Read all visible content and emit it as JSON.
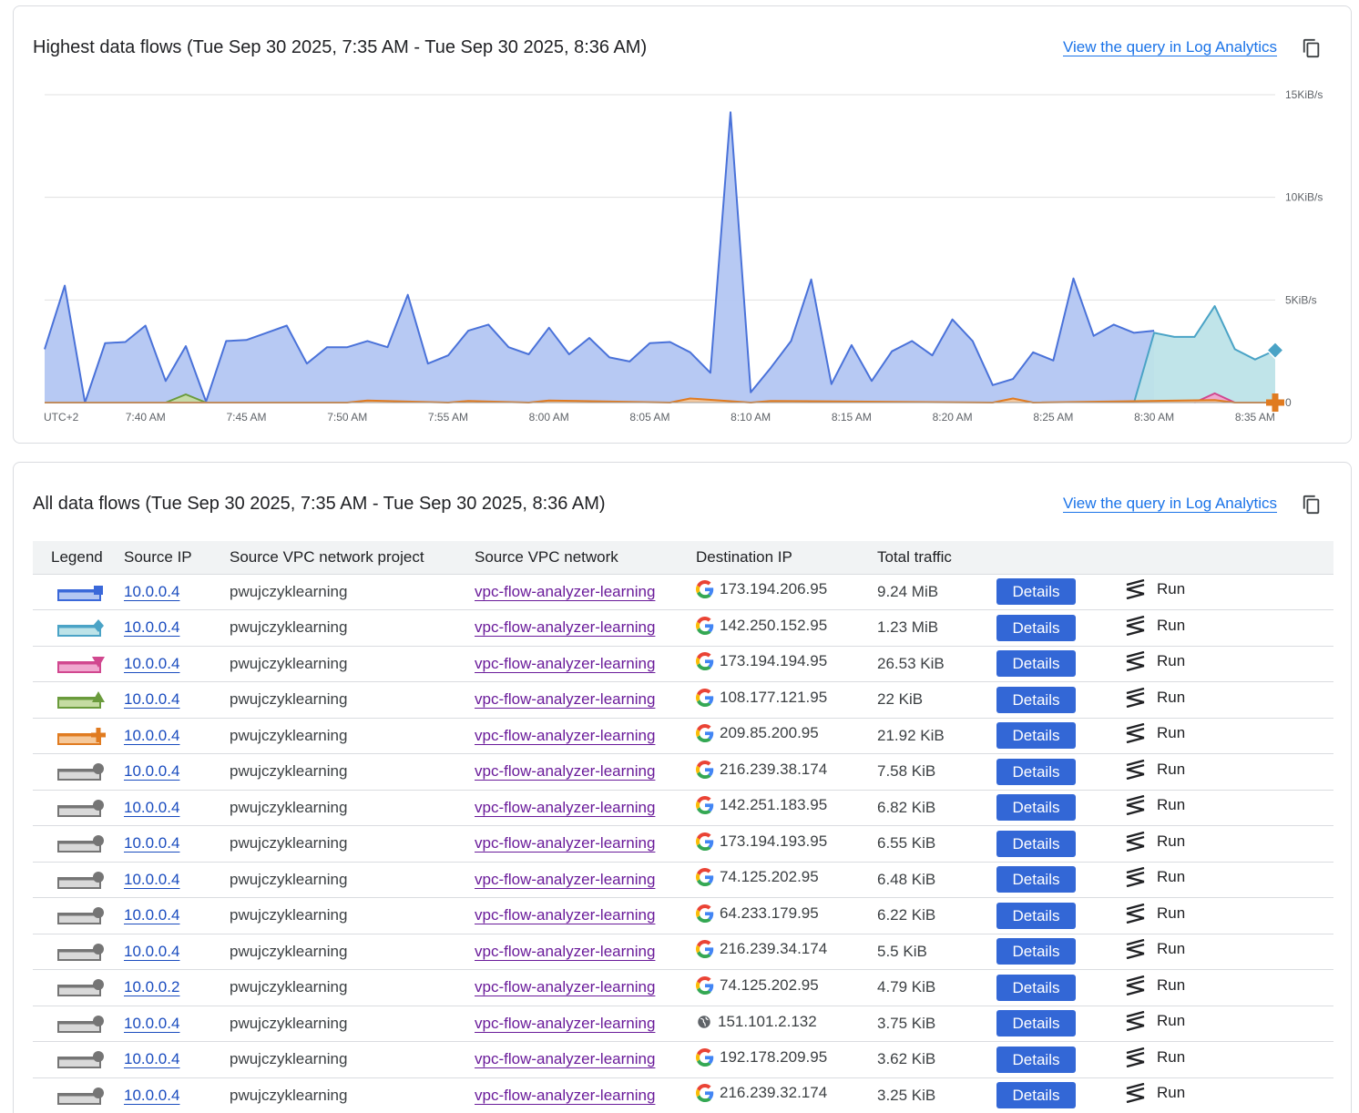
{
  "chart_card": {
    "title": "Highest data flows (Tue Sep 30 2025, 7:35 AM - Tue Sep 30 2025, 8:36 AM)",
    "link_label": "View the query in Log Analytics",
    "copy_icon": "copy-icon"
  },
  "chart_data": {
    "type": "area",
    "title": "Highest data flows (Tue Sep 30 2025, 7:35 AM - Tue Sep 30 2025, 8:36 AM)",
    "xlabel": "",
    "ylabel": "",
    "timezone_label": "UTC+2",
    "x_unit": "minutes since 7:35 AM",
    "x_range": [
      0,
      61
    ],
    "ylim": [
      0,
      15
    ],
    "y_unit": "KiB/s",
    "y_ticks": [
      {
        "value": 0,
        "label": "0"
      },
      {
        "value": 5,
        "label": "5KiB/s"
      },
      {
        "value": 10,
        "label": "10KiB/s"
      },
      {
        "value": 15,
        "label": "15KiB/s"
      }
    ],
    "x_ticks": [
      {
        "value": 5,
        "label": "7:40 AM"
      },
      {
        "value": 10,
        "label": "7:45 AM"
      },
      {
        "value": 15,
        "label": "7:50 AM"
      },
      {
        "value": 20,
        "label": "7:55 AM"
      },
      {
        "value": 25,
        "label": "8:00 AM"
      },
      {
        "value": 30,
        "label": "8:05 AM"
      },
      {
        "value": 35,
        "label": "8:10 AM"
      },
      {
        "value": 40,
        "label": "8:15 AM"
      },
      {
        "value": 45,
        "label": "8:20 AM"
      },
      {
        "value": 50,
        "label": "8:25 AM"
      },
      {
        "value": 55,
        "label": "8:30 AM"
      },
      {
        "value": 60,
        "label": "8:35 AM"
      }
    ],
    "grid": true,
    "series": [
      {
        "name": "173.194.206.95",
        "color": "#4a72d9",
        "fill": "#b3c6f2",
        "x": [
          0,
          1,
          2,
          3,
          4,
          5,
          6,
          7,
          8,
          9,
          10,
          11,
          12,
          13,
          14,
          15,
          16,
          17,
          18,
          19,
          20,
          21,
          22,
          23,
          24,
          25,
          26,
          27,
          28,
          29,
          30,
          31,
          32,
          33,
          34,
          35,
          36,
          37,
          38,
          39,
          40,
          41,
          42,
          43,
          44,
          45,
          46,
          47,
          48,
          49,
          50,
          51,
          52,
          53,
          54,
          55
        ],
        "y": [
          2.6,
          5.7,
          0.0,
          2.9,
          2.95,
          3.75,
          1.05,
          2.75,
          0.05,
          3.0,
          3.05,
          3.4,
          3.75,
          1.9,
          2.7,
          2.7,
          3.0,
          2.7,
          5.25,
          1.9,
          2.3,
          3.5,
          3.8,
          2.7,
          2.35,
          3.65,
          2.35,
          3.15,
          2.2,
          2.0,
          2.9,
          2.95,
          2.45,
          1.45,
          14.15,
          0.5,
          1.7,
          3.0,
          6.0,
          0.9,
          2.8,
          1.05,
          2.5,
          3.0,
          2.3,
          4.05,
          3.0,
          0.85,
          1.15,
          2.45,
          2.05,
          6.05,
          3.25,
          3.8,
          3.4,
          3.5
        ]
      },
      {
        "name": "142.250.152.95",
        "color": "#4aa3c6",
        "fill": "#bde3e8",
        "x": [
          54,
          55,
          56,
          57,
          58,
          59,
          60,
          61
        ],
        "y": [
          0.0,
          3.4,
          3.2,
          3.2,
          4.7,
          2.6,
          2.1,
          2.55
        ]
      },
      {
        "name": "173.194.194.95",
        "color": "#d1478f",
        "fill": "#f0a7cf",
        "x": [
          57,
          58,
          59
        ],
        "y": [
          0.0,
          0.45,
          0.0
        ]
      },
      {
        "name": "108.177.121.95",
        "color": "#6a9b3c",
        "fill": "#c5dca2",
        "x": [
          6,
          7,
          8
        ],
        "y": [
          0.0,
          0.4,
          0.0
        ]
      },
      {
        "name": "209.85.200.95",
        "color": "#e07b20",
        "fill": "#f5c89a",
        "x": [
          0,
          1,
          15,
          16,
          20,
          21,
          24,
          25,
          31,
          32,
          35,
          36,
          47,
          48,
          49,
          58,
          59,
          61
        ],
        "y": [
          0.0,
          0.0,
          0.0,
          0.1,
          0.0,
          0.08,
          0.0,
          0.1,
          0.0,
          0.2,
          0.0,
          0.08,
          0.0,
          0.2,
          0.0,
          0.12,
          0.0,
          0.0
        ]
      }
    ]
  },
  "table_card": {
    "title": "All data flows (Tue Sep 30 2025, 7:35 AM - Tue Sep 30 2025, 8:36 AM)",
    "link_label": "View the query in Log Analytics",
    "copy_icon": "copy-icon",
    "columns": [
      "Legend",
      "Source IP",
      "Source VPC network project",
      "Source VPC network",
      "Destination IP",
      "Total traffic"
    ],
    "details_label": "Details",
    "run_label": "Run",
    "rows": [
      {
        "legend": "square",
        "color": "#3a68d9",
        "fill": "#b3c6f2",
        "source_ip": "10.0.0.4",
        "project": "pwujczyklearning",
        "network": "vpc-flow-analyzer-learning",
        "dest_icon": "google-g-icon",
        "dest_ip": "173.194.206.95",
        "traffic": "9.24 MiB"
      },
      {
        "legend": "diamond",
        "color": "#4aa3c6",
        "fill": "#bde3e8",
        "source_ip": "10.0.0.4",
        "project": "pwujczyklearning",
        "network": "vpc-flow-analyzer-learning",
        "dest_icon": "google-g-icon",
        "dest_ip": "142.250.152.95",
        "traffic": "1.23 MiB"
      },
      {
        "legend": "triangle-down",
        "color": "#d1478f",
        "fill": "#f0a7cf",
        "source_ip": "10.0.0.4",
        "project": "pwujczyklearning",
        "network": "vpc-flow-analyzer-learning",
        "dest_icon": "google-g-icon",
        "dest_ip": "173.194.194.95",
        "traffic": "26.53 KiB"
      },
      {
        "legend": "triangle-up",
        "color": "#6a9b3c",
        "fill": "#c5dca2",
        "source_ip": "10.0.0.4",
        "project": "pwujczyklearning",
        "network": "vpc-flow-analyzer-learning",
        "dest_icon": "google-g-icon",
        "dest_ip": "108.177.121.95",
        "traffic": "22 KiB"
      },
      {
        "legend": "plus",
        "color": "#e07b20",
        "fill": "#f5c89a",
        "source_ip": "10.0.0.4",
        "project": "pwujczyklearning",
        "network": "vpc-flow-analyzer-learning",
        "dest_icon": "google-g-icon",
        "dest_ip": "209.85.200.95",
        "traffic": "21.92 KiB"
      },
      {
        "legend": "circle",
        "color": "#757575",
        "fill": "#d9d9d9",
        "source_ip": "10.0.0.4",
        "project": "pwujczyklearning",
        "network": "vpc-flow-analyzer-learning",
        "dest_icon": "google-g-icon",
        "dest_ip": "216.239.38.174",
        "traffic": "7.58 KiB"
      },
      {
        "legend": "circle",
        "color": "#757575",
        "fill": "#d9d9d9",
        "source_ip": "10.0.0.4",
        "project": "pwujczyklearning",
        "network": "vpc-flow-analyzer-learning",
        "dest_icon": "google-g-icon",
        "dest_ip": "142.251.183.95",
        "traffic": "6.82 KiB"
      },
      {
        "legend": "circle",
        "color": "#757575",
        "fill": "#d9d9d9",
        "source_ip": "10.0.0.4",
        "project": "pwujczyklearning",
        "network": "vpc-flow-analyzer-learning",
        "dest_icon": "google-g-icon",
        "dest_ip": "173.194.193.95",
        "traffic": "6.55 KiB"
      },
      {
        "legend": "circle",
        "color": "#757575",
        "fill": "#d9d9d9",
        "source_ip": "10.0.0.4",
        "project": "pwujczyklearning",
        "network": "vpc-flow-analyzer-learning",
        "dest_icon": "google-g-icon",
        "dest_ip": "74.125.202.95",
        "traffic": "6.48 KiB"
      },
      {
        "legend": "circle",
        "color": "#757575",
        "fill": "#d9d9d9",
        "source_ip": "10.0.0.4",
        "project": "pwujczyklearning",
        "network": "vpc-flow-analyzer-learning",
        "dest_icon": "google-g-icon",
        "dest_ip": "64.233.179.95",
        "traffic": "6.22 KiB"
      },
      {
        "legend": "circle",
        "color": "#757575",
        "fill": "#d9d9d9",
        "source_ip": "10.0.0.4",
        "project": "pwujczyklearning",
        "network": "vpc-flow-analyzer-learning",
        "dest_icon": "google-g-icon",
        "dest_ip": "216.239.34.174",
        "traffic": "5.5 KiB"
      },
      {
        "legend": "circle",
        "color": "#757575",
        "fill": "#d9d9d9",
        "source_ip": "10.0.0.2",
        "project": "pwujczyklearning",
        "network": "vpc-flow-analyzer-learning",
        "dest_icon": "google-g-icon",
        "dest_ip": "74.125.202.95",
        "traffic": "4.79 KiB"
      },
      {
        "legend": "circle",
        "color": "#757575",
        "fill": "#d9d9d9",
        "source_ip": "10.0.0.4",
        "project": "pwujczyklearning",
        "network": "vpc-flow-analyzer-learning",
        "dest_icon": "globe-icon",
        "dest_ip": "151.101.2.132",
        "traffic": "3.75 KiB"
      },
      {
        "legend": "circle",
        "color": "#757575",
        "fill": "#d9d9d9",
        "source_ip": "10.0.0.4",
        "project": "pwujczyklearning",
        "network": "vpc-flow-analyzer-learning",
        "dest_icon": "google-g-icon",
        "dest_ip": "192.178.209.95",
        "traffic": "3.62 KiB"
      },
      {
        "legend": "circle",
        "color": "#757575",
        "fill": "#d9d9d9",
        "source_ip": "10.0.0.4",
        "project": "pwujczyklearning",
        "network": "vpc-flow-analyzer-learning",
        "dest_icon": "google-g-icon",
        "dest_ip": "216.239.32.174",
        "traffic": "3.25 KiB"
      }
    ]
  }
}
